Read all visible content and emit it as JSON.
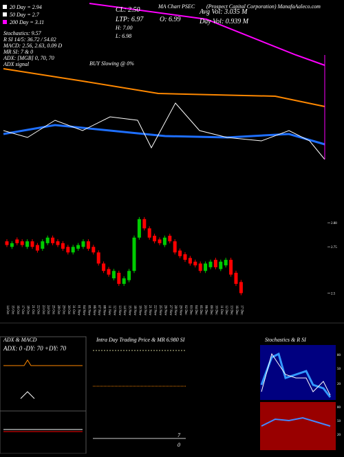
{
  "chart_data": {
    "type": "candlestick",
    "title": "MA Chart PSEC",
    "subtitle": "(Prospect Capital Corporation) ManafaAaleco.com",
    "legend": [
      {
        "text": "20 Day = 2.94",
        "color": "#ffffff"
      },
      {
        "text": "50 Day = 2.7",
        "color": "#ffffff"
      },
      {
        "text": "200 Day = 3.11",
        "color": "#ff00ff"
      }
    ],
    "info_left": [
      "Stochastics: 9.57",
      "R SI 14/5: 36.72 / 54.02",
      "MACD: 2.56, 2.63, 0.09 D",
      "MR SI: 7 & 0",
      "ADX: [MGB] 0, 70, 70",
      "ADX signal"
    ],
    "info_mid": [
      "CL: 2.50",
      "LTP: 6.97",
      "O: 6.99",
      "H: 7.00",
      "L: 6.98",
      "BUY Slowing @ 0%"
    ],
    "info_right": [
      "Avg Vol: 3.035 M",
      "Day Vol: 0.939 M"
    ],
    "categories": [
      "14 Oct",
      "15 Oct",
      "16 Oct",
      "17 Oct",
      "18 Oct",
      "21 Oct",
      "22 Oct",
      "23 Oct",
      "24 Oct",
      "25 Oct",
      "28 Oct",
      "29 Oct",
      "30 Oct",
      "31 Oct",
      "01 Nov",
      "04 Nov",
      "05 Nov",
      "06 Nov",
      "07 Nov",
      "08 Nov",
      "11 Nov",
      "12 Nov",
      "13 Nov",
      "14 Nov",
      "15 Nov",
      "18 Nov",
      "19 Nov",
      "20 Nov",
      "21 Nov",
      "22 Nov",
      "25 Nov",
      "26 Nov",
      "27 Nov",
      "28 Nov",
      "29 Nov",
      "02 Dec",
      "03 Dec",
      "04 Dec",
      "05 Dec",
      "06 Dec",
      "09 Dec",
      "10 Dec",
      "11 Dec",
      "12 Dec",
      "13 Dec",
      "16 Dec",
      "17 Dec"
    ],
    "open": [
      2.78,
      2.75,
      2.79,
      2.78,
      2.75,
      2.78,
      2.76,
      2.74,
      2.77,
      2.8,
      2.78,
      2.77,
      2.75,
      2.72,
      2.74,
      2.75,
      2.78,
      2.75,
      2.72,
      2.66,
      2.63,
      2.58,
      2.61,
      2.55,
      2.57,
      2.62,
      2.8,
      2.9,
      2.85,
      2.81,
      2.79,
      2.76,
      2.81,
      2.78,
      2.73,
      2.71,
      2.69,
      2.67,
      2.66,
      2.62,
      2.64,
      2.68,
      2.63,
      2.65,
      2.68,
      2.61,
      2.56
    ],
    "close": [
      2.76,
      2.77,
      2.77,
      2.76,
      2.78,
      2.75,
      2.73,
      2.78,
      2.8,
      2.77,
      2.76,
      2.74,
      2.72,
      2.75,
      2.76,
      2.78,
      2.74,
      2.72,
      2.66,
      2.62,
      2.6,
      2.62,
      2.55,
      2.58,
      2.62,
      2.8,
      2.9,
      2.85,
      2.8,
      2.78,
      2.77,
      2.8,
      2.78,
      2.72,
      2.7,
      2.68,
      2.66,
      2.65,
      2.62,
      2.66,
      2.67,
      2.64,
      2.67,
      2.68,
      2.6,
      2.55,
      2.5
    ],
    "up_color": "#00cc00",
    "down_color": "#ff0000",
    "ylim": [
      2.45,
      2.97
    ],
    "yticks": [
      2.5,
      2.75,
      2.88
    ]
  },
  "panels": {
    "adx": {
      "title": "ADX & MACD",
      "readout": "ADX: 0  -DY: 70  +DY: 70"
    },
    "intraday": {
      "title": "Intra Day Trading Price & MR 6.980 SI",
      "labels": [
        "7",
        "0"
      ]
    },
    "stoch": {
      "title": "Stochastics & R SI",
      "ticks": [
        "80",
        "50",
        "20"
      ],
      "rsi_ticks": [
        "80",
        "50",
        "20"
      ]
    }
  }
}
